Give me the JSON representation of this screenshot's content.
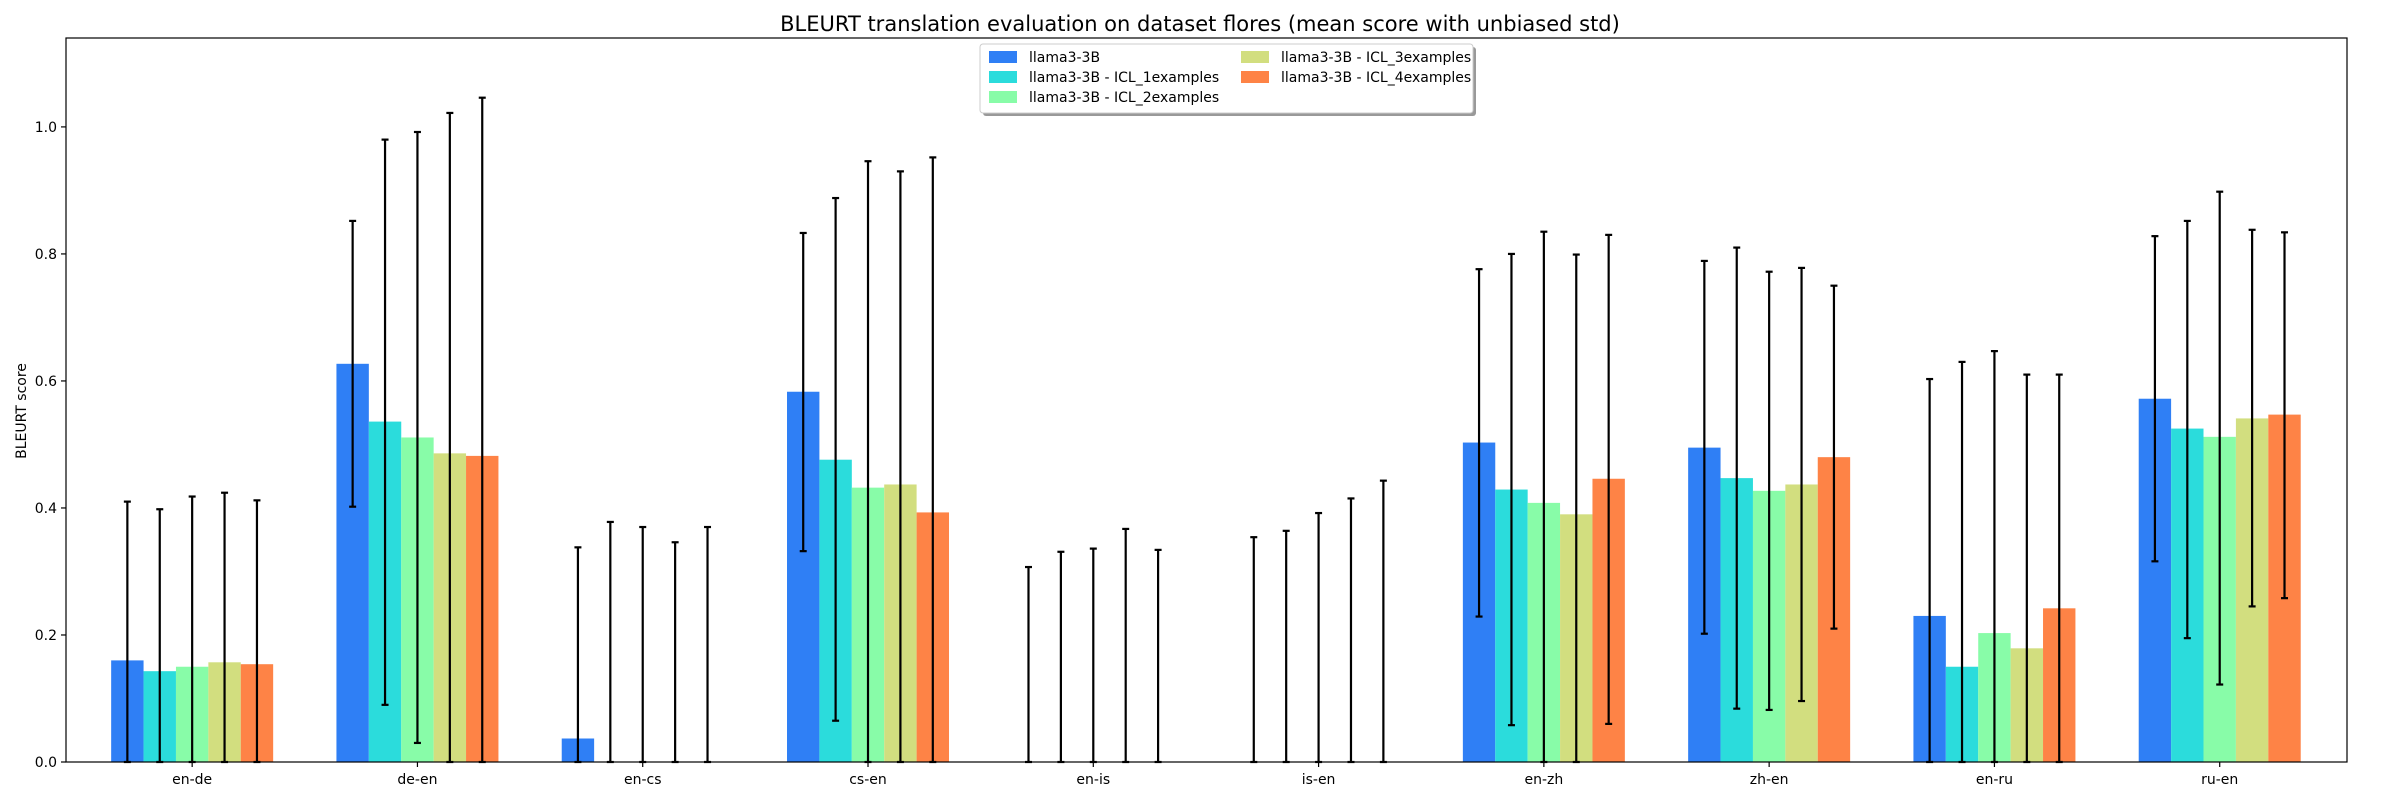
{
  "chart_data": {
    "type": "bar",
    "title": "BLEURT translation evaluation on dataset flores (mean score with unbiased std)",
    "xlabel": "",
    "ylabel": "BLEURT score",
    "ylim": [
      0,
      1.14
    ],
    "yticks": [
      "0.0",
      "0.2",
      "0.4",
      "0.6",
      "0.8",
      "1.0"
    ],
    "grid": false,
    "legend_position": "top-center",
    "categories": [
      "en-de",
      "de-en",
      "en-cs",
      "cs-en",
      "en-is",
      "is-en",
      "en-zh",
      "zh-en",
      "en-ru",
      "ru-en"
    ],
    "series": [
      {
        "name": "llama3-3B",
        "color": "#2f7ff5",
        "values": [
          0.16,
          0.627,
          0.037,
          0.583,
          0.0,
          0.0,
          0.503,
          0.495,
          0.23,
          0.572
        ],
        "err_low": [
          0.0,
          0.402,
          0.0,
          0.332,
          0.0,
          0.0,
          0.229,
          0.202,
          0.0,
          0.316
        ],
        "err_high": [
          0.41,
          0.852,
          0.338,
          0.833,
          0.307,
          0.354,
          0.776,
          0.789,
          0.603,
          0.828
        ]
      },
      {
        "name": "llama3-3B - ICL_1examples",
        "color": "#2bdcdc",
        "values": [
          0.143,
          0.536,
          0.0,
          0.476,
          0.0,
          0.0,
          0.429,
          0.447,
          0.15,
          0.525
        ],
        "err_low": [
          0.0,
          0.09,
          0.0,
          0.065,
          0.0,
          0.0,
          0.058,
          0.084,
          0.0,
          0.195
        ],
        "err_high": [
          0.398,
          0.98,
          0.378,
          0.888,
          0.331,
          0.364,
          0.8,
          0.81,
          0.63,
          0.852
        ]
      },
      {
        "name": "llama3-3B - ICL_2examples",
        "color": "#88fca8",
        "values": [
          0.15,
          0.511,
          0.0,
          0.432,
          0.0,
          0.0,
          0.408,
          0.427,
          0.203,
          0.512
        ],
        "err_low": [
          0.0,
          0.03,
          0.0,
          0.0,
          0.0,
          0.0,
          0.0,
          0.082,
          0.0,
          0.122
        ],
        "err_high": [
          0.418,
          0.992,
          0.37,
          0.946,
          0.336,
          0.392,
          0.835,
          0.772,
          0.647,
          0.898
        ]
      },
      {
        "name": "llama3-3B - ICL_3examples",
        "color": "#d2de7f",
        "values": [
          0.157,
          0.486,
          0.0,
          0.437,
          0.0,
          0.0,
          0.39,
          0.437,
          0.179,
          0.541
        ],
        "err_low": [
          0.0,
          0.0,
          0.0,
          0.0,
          0.0,
          0.0,
          0.0,
          0.096,
          0.0,
          0.245
        ],
        "err_high": [
          0.424,
          1.022,
          0.346,
          0.93,
          0.367,
          0.415,
          0.799,
          0.778,
          0.61,
          0.838
        ]
      },
      {
        "name": "llama3-3B - ICL_4examples",
        "color": "#fe8346",
        "values": [
          0.154,
          0.482,
          0.0,
          0.393,
          0.0,
          0.0,
          0.446,
          0.48,
          0.242,
          0.547
        ],
        "err_low": [
          0.0,
          0.0,
          0.0,
          0.0,
          0.0,
          0.0,
          0.06,
          0.21,
          0.0,
          0.258
        ],
        "err_high": [
          0.412,
          1.046,
          0.37,
          0.952,
          0.334,
          0.443,
          0.83,
          0.75,
          0.61,
          0.834
        ]
      }
    ]
  }
}
